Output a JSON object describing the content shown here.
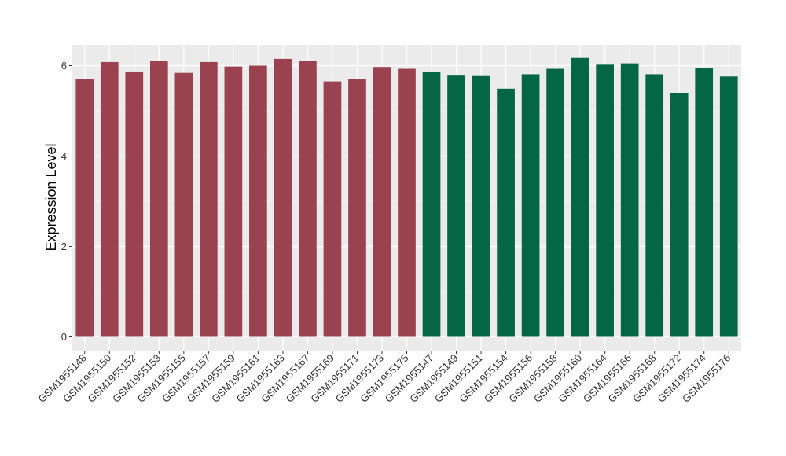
{
  "chart_data": {
    "type": "bar",
    "title": "",
    "xlabel": "",
    "ylabel": "Expression Level",
    "ylim": [
      0,
      6.3
    ],
    "yticks": [
      0,
      2,
      4,
      6
    ],
    "grid": true,
    "legend": "none",
    "categories": [
      "GSM1955148",
      "GSM1955150",
      "GSM1955152",
      "GSM1955153",
      "GSM1955155",
      "GSM1955157",
      "GSM1955159",
      "GSM1955161",
      "GSM1955163",
      "GSM1955167",
      "GSM1955169",
      "GSM1955171",
      "GSM1955173",
      "GSM1955175",
      "GSM1955147",
      "GSM1955149",
      "GSM1955151",
      "GSM1955154",
      "GSM1955156",
      "GSM1955158",
      "GSM1955160",
      "GSM1955164",
      "GSM1955166",
      "GSM1955168",
      "GSM1955172",
      "GSM1955174",
      "GSM1955176"
    ],
    "values": [
      5.7,
      6.08,
      5.87,
      6.1,
      5.84,
      6.08,
      5.98,
      6.0,
      6.15,
      6.1,
      5.65,
      5.7,
      5.97,
      5.93,
      5.86,
      5.78,
      5.77,
      5.49,
      5.81,
      5.93,
      6.17,
      6.02,
      6.05,
      5.81,
      5.4,
      5.95,
      5.76
    ],
    "groups": [
      0,
      0,
      0,
      0,
      0,
      0,
      0,
      0,
      0,
      0,
      0,
      0,
      0,
      0,
      1,
      1,
      1,
      1,
      1,
      1,
      1,
      1,
      1,
      1,
      1,
      1,
      1
    ],
    "colors": {
      "group_0": "#9b4250",
      "group_1": "#046645",
      "panel_bg": "#ebebeb",
      "grid_major": "#ffffff",
      "grid_minor": "#f5f5f5"
    }
  }
}
